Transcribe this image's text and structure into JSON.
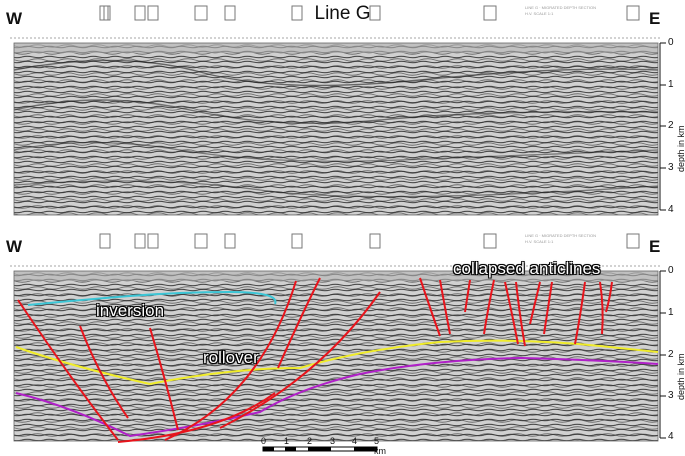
{
  "top_panel": {
    "title": "Line G",
    "west_label": "W",
    "east_label": "E",
    "depth_axis_label": "depth in km",
    "depth_ticks": [
      "0",
      "1",
      "2",
      "3",
      "4"
    ]
  },
  "bottom_panel": {
    "west_label": "W",
    "east_label": "E",
    "depth_axis_label": "depth in km",
    "depth_ticks": [
      "0",
      "1",
      "2",
      "3",
      "4"
    ],
    "annotations": {
      "inversion": "inversion",
      "rollover": "rollover",
      "collapsed": "collapsed anticlines"
    },
    "scale_bar": {
      "ticks": [
        "0",
        "1",
        "2",
        "3",
        "4",
        "5 km"
      ]
    }
  },
  "colors": {
    "fault": "#e8141c",
    "horizon_cyan": "#3cc6d6",
    "horizon_yellow": "#f0ec2a",
    "horizon_purple": "#b020c8",
    "seismic_bg": "#c9c9c9"
  }
}
